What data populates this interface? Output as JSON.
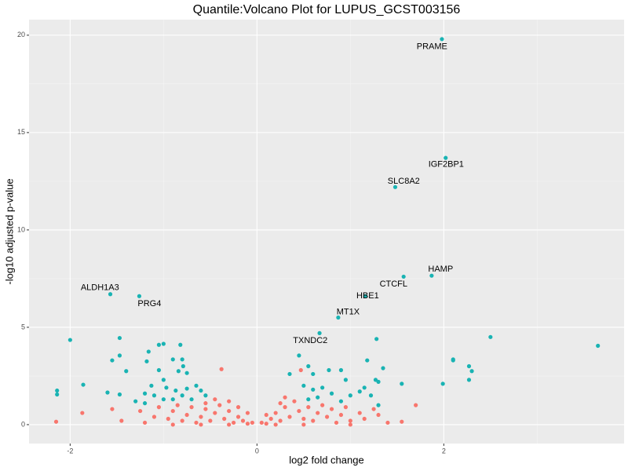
{
  "chart_data": {
    "type": "scatter",
    "title": "Quantile:Volcano Plot for LUPUS_GCST003156",
    "x_label": "log2 fold change",
    "y_label": "-log10 adjusted p-value",
    "xlim": [
      -2.44,
      3.93
    ],
    "ylim": [
      -0.97,
      20.8
    ],
    "xticks": [
      -2,
      0,
      2
    ],
    "yticks": [
      0,
      5,
      10,
      15,
      20
    ],
    "grid": true,
    "series": [
      {
        "color": "#f8766d",
        "x": [
          -2.15,
          -1.87,
          -1.55,
          -1.45,
          -1.2,
          -1.25,
          -1.1,
          -1.05,
          -0.95,
          -0.9,
          -0.85,
          -0.8,
          -0.75,
          -0.7,
          -0.65,
          -0.6,
          -0.55,
          -0.5,
          -0.45,
          -0.4,
          -0.35,
          -0.3,
          -0.25,
          -0.2,
          -0.15,
          -0.1,
          -0.05,
          0.05,
          0.1,
          0.15,
          0.2,
          0.25,
          0.3,
          0.35,
          0.4,
          0.45,
          0.5,
          0.55,
          0.6,
          0.65,
          0.7,
          0.75,
          0.8,
          0.85,
          0.9,
          0.95,
          1.0,
          1.1,
          1.15,
          1.25,
          1.3,
          1.4,
          1.55,
          1.7,
          -0.38,
          0.47,
          -0.55,
          -0.45,
          0.3,
          0.25,
          -0.3,
          -0.2,
          0.1,
          -0.1,
          0.2,
          -0.6,
          0.5,
          -0.9,
          1.0,
          -0.3
        ],
        "values": [
          0.15,
          0.6,
          0.8,
          0.2,
          0.1,
          0.7,
          0.4,
          0.9,
          0.3,
          0.7,
          1.0,
          0.2,
          0.5,
          0.9,
          0.1,
          0.4,
          0.8,
          0.2,
          0.6,
          1.0,
          0.3,
          0.7,
          0.1,
          0.4,
          0.2,
          0.05,
          0.1,
          0.1,
          0.05,
          0.3,
          0.6,
          0.2,
          0.9,
          0.4,
          1.2,
          0.7,
          0.3,
          0.9,
          0.2,
          0.6,
          1.0,
          0.4,
          0.8,
          0.1,
          0.5,
          0.9,
          0.2,
          0.6,
          0.3,
          0.8,
          0.5,
          0.1,
          0.15,
          1.0,
          2.85,
          2.8,
          1.1,
          1.3,
          1.4,
          1.1,
          1.2,
          0.9,
          0.5,
          0.6,
          0.0,
          0.0,
          0.0,
          0.0,
          0.0,
          0.0
        ]
      },
      {
        "color": "#19b3b3",
        "x": [
          1.98,
          2.02,
          1.48,
          1.87,
          1.57,
          1.16,
          0.87,
          0.67,
          -1.57,
          -1.26,
          -2.0,
          -2.14,
          -2.14,
          -1.86,
          -1.47,
          -1.55,
          -1.47,
          -1.4,
          -1.6,
          -1.47,
          -1.16,
          -1.05,
          -1.0,
          -0.82,
          -1.18,
          -0.9,
          -0.8,
          -0.79,
          -0.84,
          -0.75,
          -1.05,
          -1.0,
          -1.13,
          -0.97,
          -0.87,
          -0.75,
          -0.65,
          -0.6,
          -0.55,
          -0.7,
          -0.8,
          -0.9,
          -1.0,
          -1.1,
          -1.2,
          -1.3,
          -1.2,
          0.45,
          0.55,
          0.35,
          0.6,
          0.77,
          0.5,
          0.6,
          0.7,
          0.8,
          0.65,
          0.55,
          0.9,
          0.95,
          0.9,
          1.0,
          1.1,
          1.28,
          1.18,
          1.27,
          1.35,
          1.3,
          1.15,
          1.22,
          1.3,
          1.55,
          1.99,
          2.1,
          2.1,
          2.27,
          2.3,
          2.27,
          2.5,
          3.65
        ],
        "values": [
          19.8,
          13.7,
          12.2,
          7.65,
          7.6,
          6.6,
          5.5,
          4.7,
          6.7,
          6.6,
          4.35,
          1.75,
          1.55,
          2.05,
          4.45,
          3.3,
          3.55,
          2.75,
          1.65,
          1.55,
          3.75,
          4.1,
          4.15,
          4.1,
          3.25,
          3.35,
          3.35,
          3.0,
          2.75,
          2.65,
          2.8,
          2.3,
          2.0,
          1.9,
          1.75,
          1.85,
          2.0,
          1.75,
          1.5,
          1.3,
          1.5,
          1.3,
          1.3,
          1.5,
          1.6,
          1.2,
          1.1,
          3.55,
          3.0,
          2.6,
          2.6,
          2.8,
          2.0,
          1.8,
          1.9,
          1.6,
          1.4,
          1.3,
          2.8,
          2.3,
          1.2,
          1.5,
          1.7,
          4.4,
          3.3,
          2.3,
          2.9,
          2.2,
          1.9,
          1.5,
          1.0,
          2.1,
          2.1,
          3.35,
          3.3,
          3.0,
          2.75,
          2.3,
          4.5,
          4.05
        ]
      }
    ],
    "annotations": [
      {
        "text": "PRAME",
        "x": 1.874,
        "y": 19.4
      },
      {
        "text": "IGF2BP1",
        "x": 2.025,
        "y": 13.35
      },
      {
        "text": "SLC8A2",
        "x": 1.571,
        "y": 12.5
      },
      {
        "text": "HAMP",
        "x": 1.966,
        "y": 7.98
      },
      {
        "text": "CTCFL",
        "x": 1.462,
        "y": 7.22
      },
      {
        "text": "HBE1",
        "x": 1.185,
        "y": 6.61
      },
      {
        "text": "MT1X",
        "x": 0.975,
        "y": 5.77
      },
      {
        "text": "TXNDC2",
        "x": 0.571,
        "y": 4.31
      },
      {
        "text": "ALDH1A3",
        "x": -1.681,
        "y": 7.02
      },
      {
        "text": "PRG4",
        "x": -1.151,
        "y": 6.21
      }
    ]
  }
}
